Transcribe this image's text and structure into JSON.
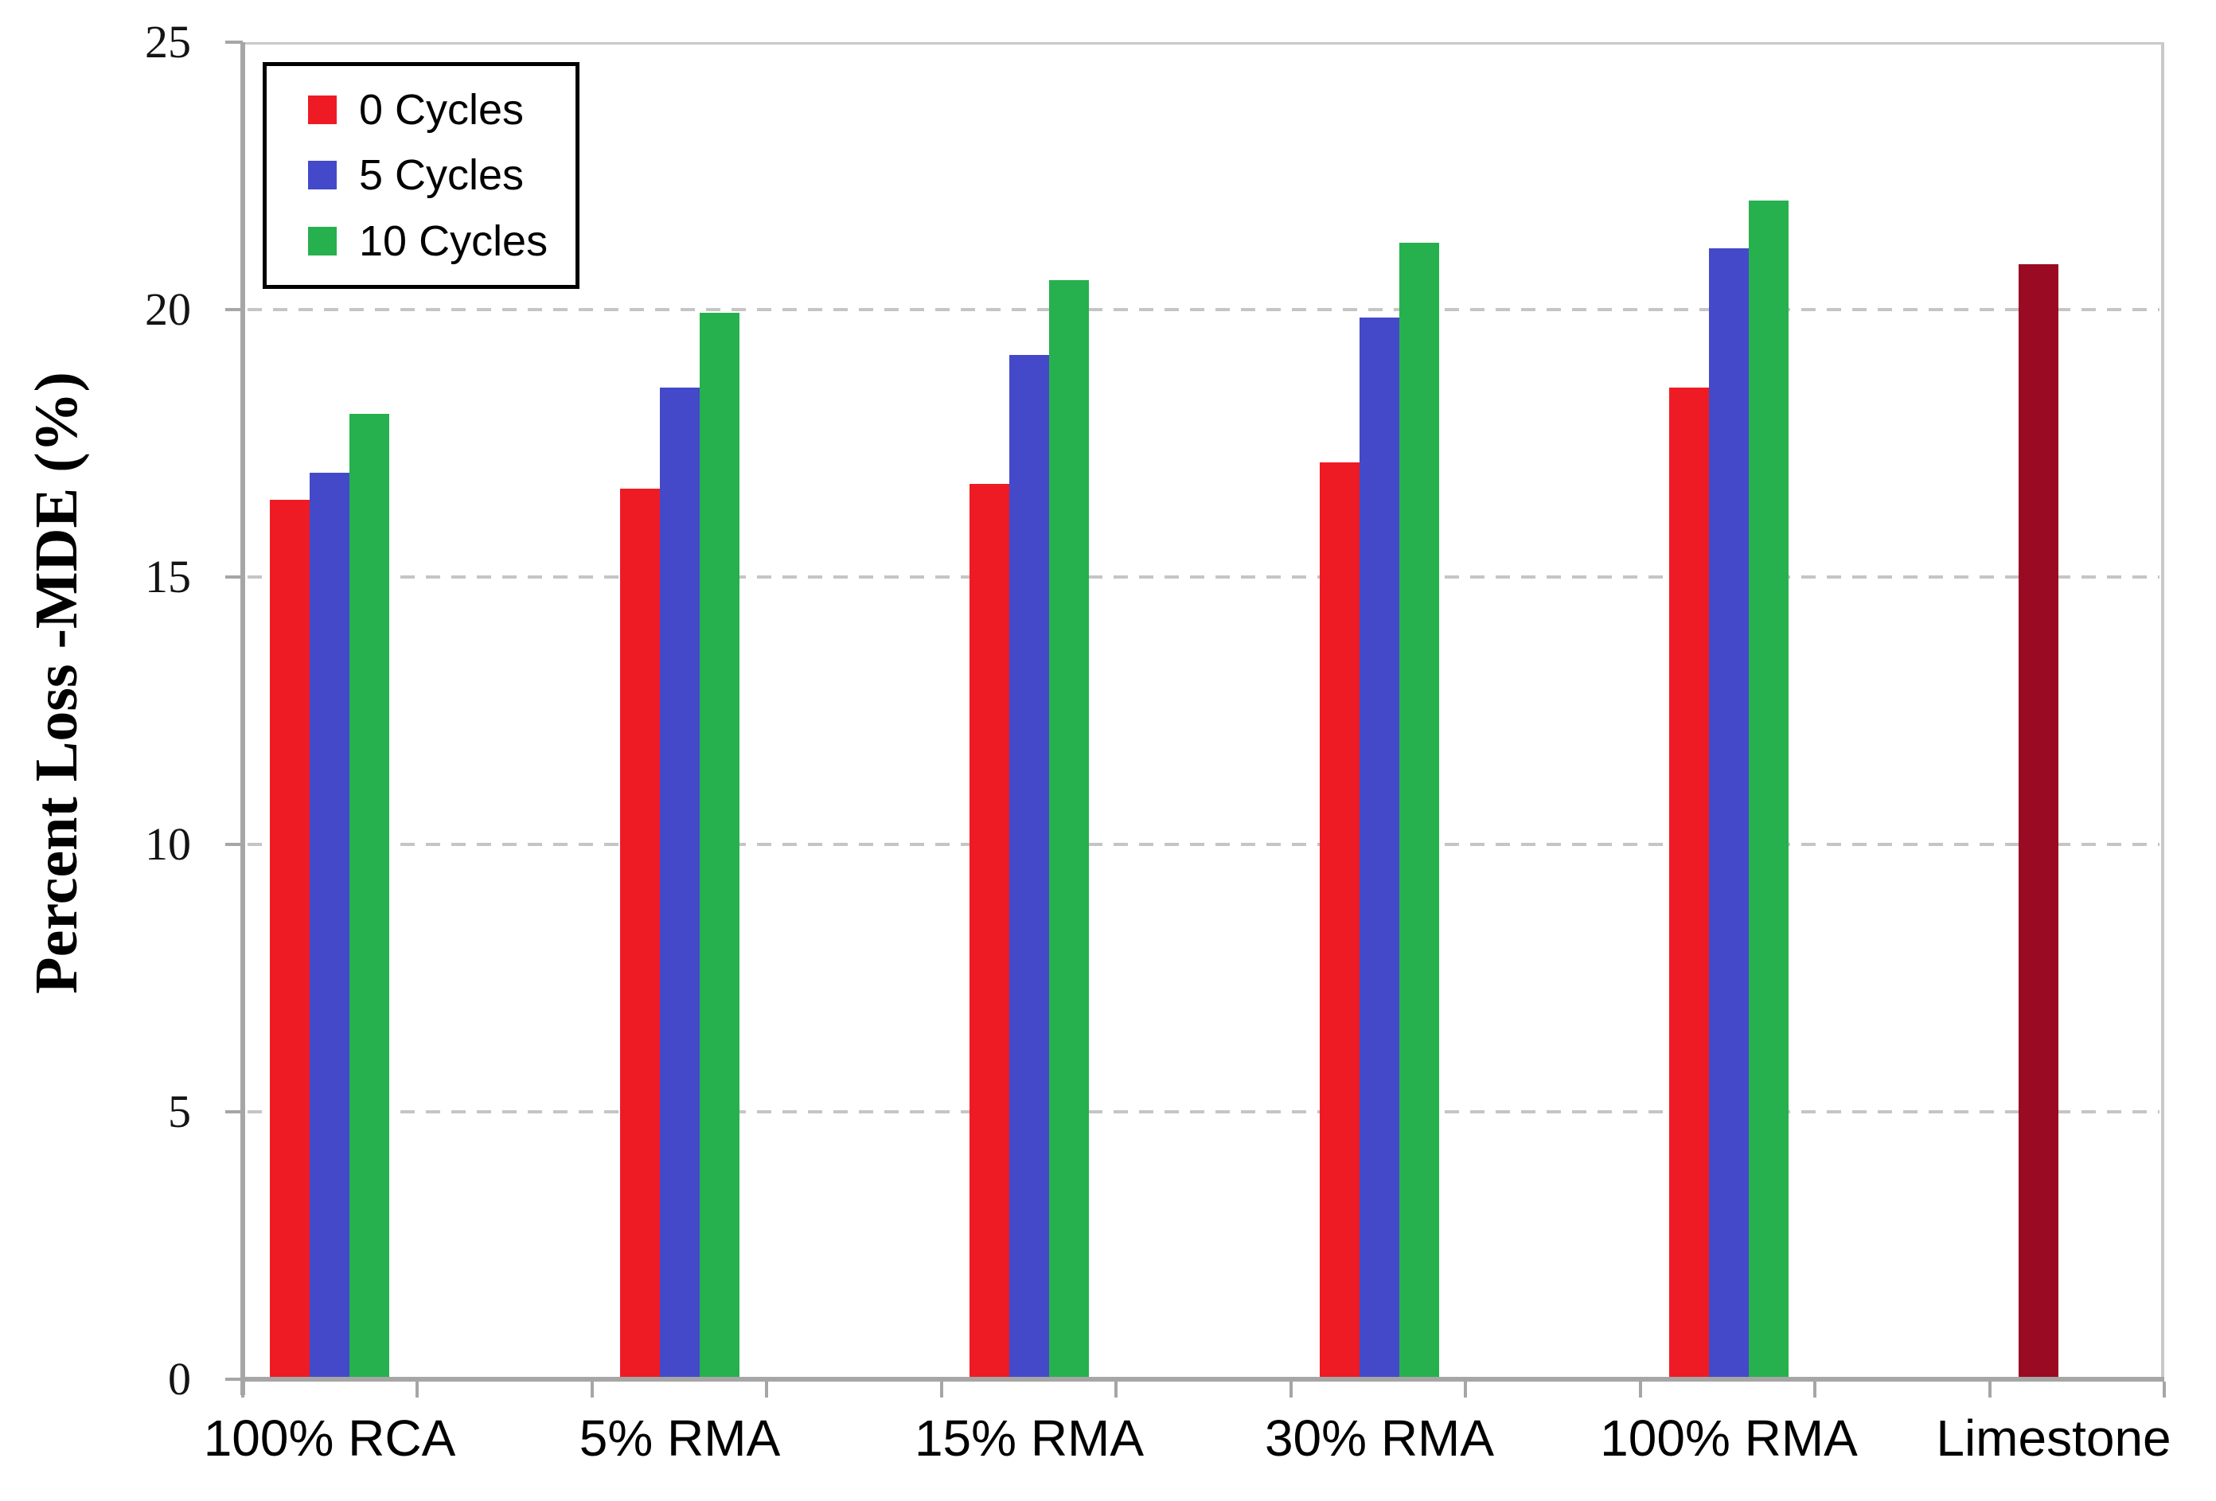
{
  "chart_data": {
    "type": "bar",
    "title": "",
    "xlabel": "",
    "ylabel": "Percent Loss -MDE (%)",
    "ylim": [
      0,
      25
    ],
    "yticks": [
      0,
      5,
      10,
      15,
      20,
      25
    ],
    "gridlines_at": [
      5,
      10,
      15,
      20
    ],
    "grid": "dashed-horizontal-gray",
    "legend_position": "top-left",
    "plot_border_color": "#C9C9C9",
    "axis_color": "#A6A6A6",
    "categories": [
      "100% RCA",
      "5% RMA",
      "15% RMA",
      "30% RMA",
      "100% RMA",
      "Limestone"
    ],
    "series": [
      {
        "name": "0 Cycles",
        "color": "#EE1B24",
        "values": [
          16.4,
          16.6,
          16.7,
          17.1,
          18.5,
          null
        ]
      },
      {
        "name": "5 Cycles",
        "color": "#4449CA",
        "values": [
          16.9,
          18.5,
          19.1,
          19.8,
          21.1,
          null
        ]
      },
      {
        "name": "10 Cycles",
        "color": "#26B14E",
        "values": [
          18.0,
          19.9,
          20.5,
          21.2,
          22.0,
          null
        ]
      }
    ],
    "limestone_bar": {
      "category": "Limestone",
      "color": "#9A0B23",
      "value": 20.8
    }
  }
}
